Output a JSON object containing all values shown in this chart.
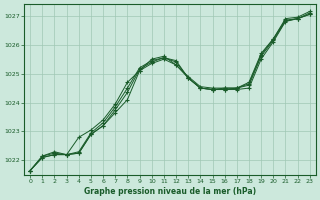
{
  "background_color": "#cce8dc",
  "grid_color": "#a0c8b4",
  "line_color": "#1a5c2a",
  "xlabel": "Graphe pression niveau de la mer (hPa)",
  "ylim": [
    1021.5,
    1027.4
  ],
  "xlim": [
    -0.5,
    23.5
  ],
  "yticks": [
    1022,
    1023,
    1024,
    1025,
    1026,
    1027
  ],
  "xticks": [
    0,
    1,
    2,
    3,
    4,
    5,
    6,
    7,
    8,
    9,
    10,
    11,
    12,
    13,
    14,
    15,
    16,
    17,
    18,
    19,
    20,
    21,
    22,
    23
  ],
  "series1": [
    1021.65,
    1022.1,
    1022.2,
    1022.2,
    1022.25,
    1022.9,
    1023.2,
    1023.65,
    1024.1,
    1025.1,
    1025.35,
    1025.5,
    1025.3,
    1024.85,
    1024.5,
    1024.45,
    1024.45,
    1024.45,
    1024.5,
    1025.5,
    1026.1,
    1026.8,
    1026.9,
    1027.05
  ],
  "series2": [
    1021.65,
    1022.1,
    1022.2,
    1022.2,
    1022.25,
    1022.9,
    1023.2,
    1023.75,
    1024.35,
    1025.15,
    1025.4,
    1025.55,
    1025.4,
    1024.85,
    1024.5,
    1024.45,
    1024.45,
    1024.5,
    1024.6,
    1025.6,
    1026.15,
    1026.82,
    1026.9,
    1027.05
  ],
  "series3": [
    1021.65,
    1022.15,
    1022.25,
    1022.2,
    1022.3,
    1022.95,
    1023.3,
    1023.85,
    1024.5,
    1025.2,
    1025.45,
    1025.55,
    1025.45,
    1024.85,
    1024.5,
    1024.45,
    1024.5,
    1024.5,
    1024.65,
    1025.65,
    1026.2,
    1026.85,
    1026.9,
    1027.1
  ],
  "series_spike": [
    1021.65,
    1022.15,
    1022.3,
    1022.2,
    1022.8,
    1023.05,
    1023.4,
    1023.95,
    1024.7,
    1025.1,
    1025.5,
    1025.6,
    1025.3,
    1024.9,
    1024.55,
    1024.5,
    1024.5,
    1024.5,
    1024.7,
    1025.7,
    1026.2,
    1026.9,
    1026.95,
    1027.15
  ]
}
